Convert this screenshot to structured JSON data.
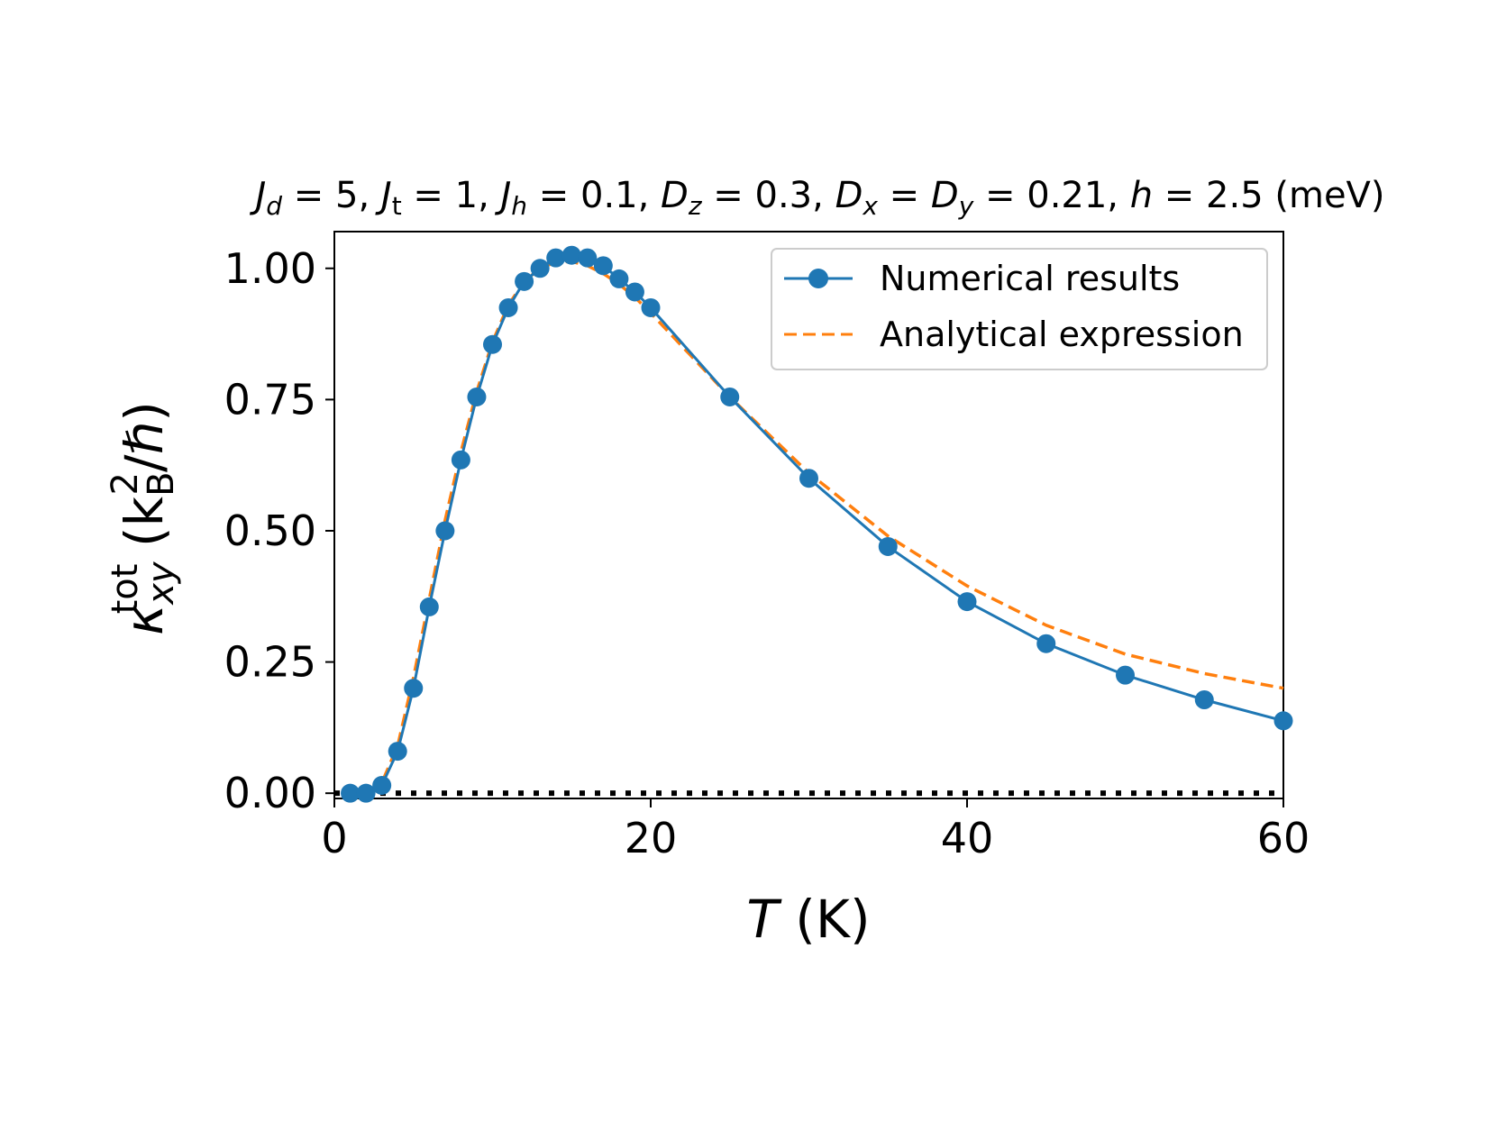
{
  "chart_data": {
    "type": "line",
    "title": "J_d = 5, J_t = 1, J_h = 0.1, D_z = 0.3, D_x = D_y = 0.21, h = 2.5 (meV)",
    "title_parts": {
      "j1_sym": "J",
      "j1_sub": "d",
      "j1_val": " = 5, ",
      "j2_sym": "J",
      "j2_sub": "t",
      "j2_val": " = 1, ",
      "j3_sym": "J",
      "j3_sub": "h",
      "j3_val": " = 0.1, ",
      "d1_sym": "D",
      "d1_sub": "z",
      "d1_val": " = 0.3, ",
      "d2_sym": "D",
      "d2_sub": "x",
      "d2_mid": " = ",
      "d3_sym": "D",
      "d3_sub": "y",
      "d3_val": " = 0.21, ",
      "h_sym": "h",
      "h_val": " = 2.5 (meV)"
    },
    "xlabel": "T (K)",
    "xlabel_parts": {
      "sym": "T",
      "unit": " (K)"
    },
    "ylabel": "κ_xy^tot (k_B^2/ℏ)",
    "ylabel_parts": {
      "sym": "κ",
      "sub": "xy",
      "sup": "tot",
      "unit_open": " (k",
      "unit_sub": "B",
      "unit_sup": "2",
      "unit_close": "/ℏ)"
    },
    "xlim": [
      0,
      60
    ],
    "ylim": [
      -0.01,
      1.07
    ],
    "xticks": [
      0,
      20,
      40,
      60
    ],
    "yticks": [
      0.0,
      0.25,
      0.5,
      0.75,
      1.0
    ],
    "xtick_labels": [
      "0",
      "20",
      "40",
      "60"
    ],
    "ytick_labels": [
      "0.00",
      "0.25",
      "0.50",
      "0.75",
      "1.00"
    ],
    "grid": false,
    "legend_position": "top-right",
    "series": [
      {
        "name": "Numerical results",
        "style": "solid-line-with-circle-markers",
        "color": "#1f77b4",
        "x": [
          1,
          2,
          3,
          4,
          5,
          6,
          7,
          8,
          9,
          10,
          11,
          12,
          13,
          14,
          15,
          16,
          17,
          18,
          19,
          20,
          25,
          30,
          35,
          40,
          45,
          50,
          55,
          60
        ],
        "y": [
          0.0,
          0.0,
          0.015,
          0.08,
          0.2,
          0.355,
          0.5,
          0.635,
          0.755,
          0.855,
          0.925,
          0.975,
          1.0,
          1.02,
          1.025,
          1.02,
          1.005,
          0.98,
          0.955,
          0.925,
          0.755,
          0.6,
          0.47,
          0.365,
          0.285,
          0.225,
          0.178,
          0.138
        ]
      },
      {
        "name": "Analytical expression",
        "style": "dashed-line",
        "color": "#ff7f0e",
        "x": [
          1,
          2,
          3,
          4,
          5,
          6,
          7,
          8,
          9,
          10,
          11,
          12,
          13,
          14,
          15,
          16,
          17,
          18,
          19,
          20,
          25,
          30,
          35,
          40,
          45,
          50,
          55,
          60
        ],
        "y": [
          0.0,
          0.002,
          0.02,
          0.09,
          0.22,
          0.37,
          0.52,
          0.65,
          0.765,
          0.86,
          0.93,
          0.975,
          1.0,
          1.012,
          1.013,
          1.005,
          0.99,
          0.97,
          0.945,
          0.915,
          0.755,
          0.61,
          0.49,
          0.395,
          0.32,
          0.265,
          0.228,
          0.2
        ]
      },
      {
        "name": "",
        "style": "dotted-black-baseline",
        "color": "#000000",
        "x": [
          0,
          60
        ],
        "y": [
          0,
          0
        ]
      }
    ]
  }
}
